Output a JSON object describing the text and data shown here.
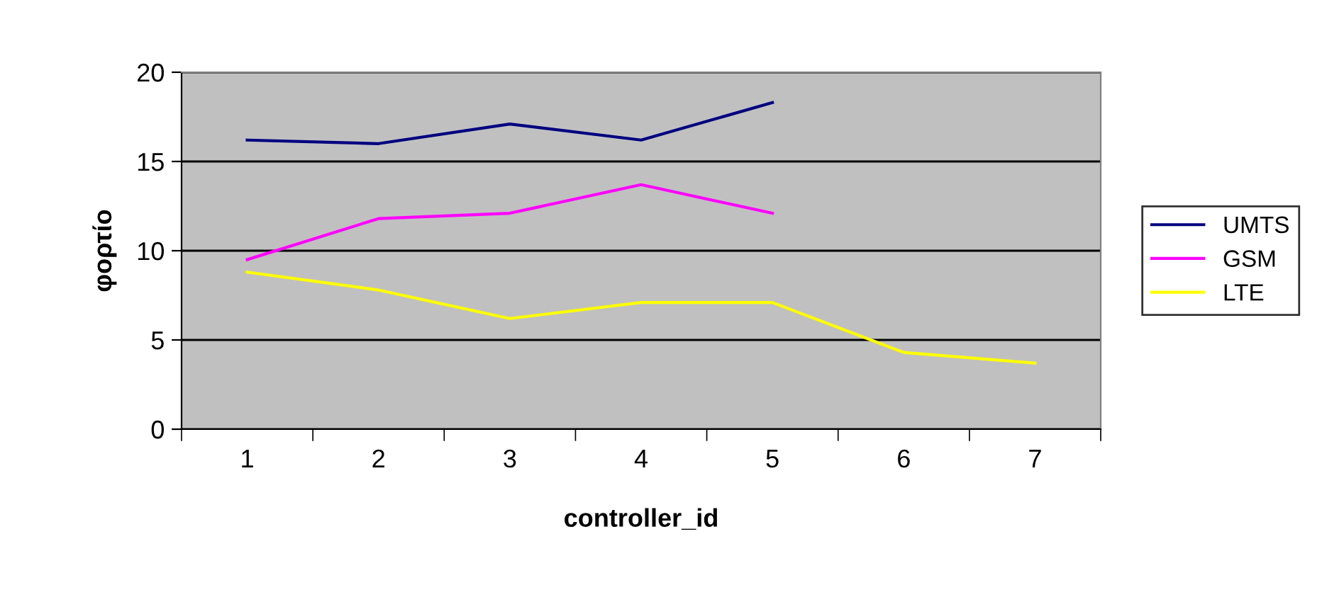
{
  "chart_data": {
    "type": "line",
    "xlabel": "controller_id",
    "ylabel": "φορτίο",
    "categories": [
      "1",
      "2",
      "3",
      "4",
      "5",
      "6",
      "7"
    ],
    "series": [
      {
        "name": "UMTS",
        "color": "#000080",
        "values": [
          16.2,
          16.0,
          17.1,
          16.2,
          18.3,
          null,
          null
        ]
      },
      {
        "name": "GSM",
        "color": "#ff00ff",
        "values": [
          9.5,
          11.8,
          12.1,
          13.7,
          12.1,
          null,
          null
        ]
      },
      {
        "name": "LTE",
        "color": "#ffff00",
        "values": [
          8.8,
          7.8,
          6.2,
          7.1,
          7.1,
          4.3,
          3.7
        ]
      }
    ],
    "ylim": [
      0,
      20
    ],
    "yticks": [
      0,
      5,
      10,
      15,
      20
    ],
    "grid": "y",
    "legend": "right",
    "marker": "none",
    "line_style": "solid"
  }
}
